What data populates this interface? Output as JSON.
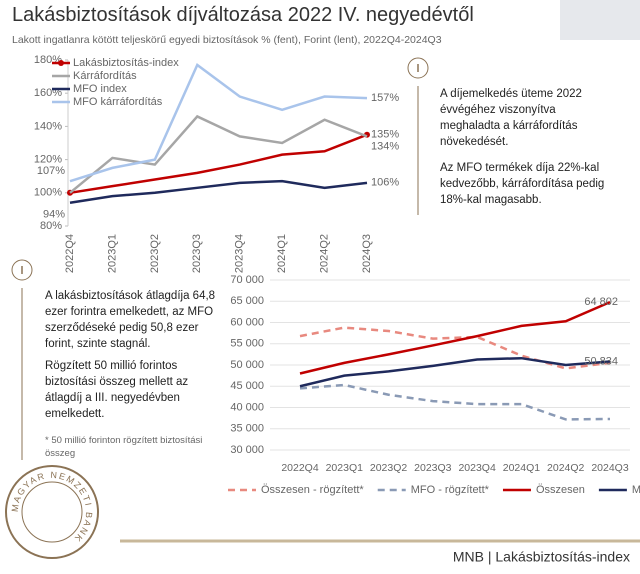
{
  "header": {
    "title": "Lakásbiztosítások díjváltozása 2022 IV. negyedévtől",
    "subtitle": "Lakott ingatlanra kötött teljeskörű egyedi biztosítások % (fent), Forint (lent), 2022Q4-2024Q3"
  },
  "chart_data": [
    {
      "type": "line",
      "categories": [
        "2022Q4",
        "2023Q1",
        "2023Q2",
        "2023Q3",
        "2023Q4",
        "2024Q1",
        "2024Q2",
        "2024Q3"
      ],
      "ylim": [
        80,
        180
      ],
      "yticks": [
        {
          "value": 80,
          "label": "80%"
        },
        {
          "value": 100,
          "label": "100%"
        },
        {
          "value": 120,
          "label": "120%"
        },
        {
          "value": 140,
          "label": "140%"
        },
        {
          "value": 160,
          "label": "160%"
        },
        {
          "value": 180,
          "label": "180%"
        }
      ],
      "grid": false,
      "legend": "upper left",
      "series": [
        {
          "name": "Lakásbiztosítás-index",
          "color": "#c00000",
          "marker": true,
          "values": [
            100,
            104,
            108,
            112,
            117,
            123,
            125,
            135
          ],
          "value_labels": [
            null,
            null,
            null,
            null,
            null,
            null,
            null,
            "135%"
          ]
        },
        {
          "name": "Kárráfordítás",
          "color": "#a6a6a6",
          "values": [
            100,
            121,
            117,
            146,
            134,
            130,
            144,
            134
          ],
          "value_labels": [
            null,
            null,
            null,
            null,
            null,
            null,
            null,
            "134%"
          ]
        },
        {
          "name": "MFO index",
          "color": "#1f2a5c",
          "values": [
            94,
            98,
            100,
            103,
            106,
            107,
            103,
            106
          ],
          "value_labels": [
            "94%",
            null,
            null,
            null,
            null,
            null,
            null,
            "106%"
          ]
        },
        {
          "name": "MFO kárráfordítás",
          "color": "#a9c4eb",
          "values": [
            107,
            115,
            120,
            177,
            158,
            150,
            158,
            157
          ],
          "value_labels": [
            "107%",
            null,
            null,
            null,
            null,
            null,
            null,
            "157%"
          ]
        }
      ]
    },
    {
      "type": "line",
      "categories": [
        "2022Q4",
        "2023Q1",
        "2023Q2",
        "2023Q3",
        "2023Q4",
        "2024Q1",
        "2024Q2",
        "2024Q3"
      ],
      "ylim": [
        30000,
        70000
      ],
      "yticks": [
        {
          "value": 30000,
          "label": "30 000"
        },
        {
          "value": 35000,
          "label": "35 000"
        },
        {
          "value": 40000,
          "label": "40 000"
        },
        {
          "value": 45000,
          "label": "45 000"
        },
        {
          "value": 50000,
          "label": "50 000"
        },
        {
          "value": 55000,
          "label": "55 000"
        },
        {
          "value": 60000,
          "label": "60 000"
        },
        {
          "value": 65000,
          "label": "65 000"
        },
        {
          "value": 70000,
          "label": "70 000"
        }
      ],
      "grid": true,
      "legend": "bottom",
      "series": [
        {
          "name": "Összesen - rögzített*",
          "color": "#e8897f",
          "linestyle": "dashed",
          "values": [
            56800,
            58800,
            58000,
            56200,
            56600,
            52200,
            49200,
            50500
          ]
        },
        {
          "name": "MFO - rögzített*",
          "color": "#8a9ab5",
          "linestyle": "dashed",
          "values": [
            44500,
            45300,
            43000,
            41500,
            40800,
            40800,
            37200,
            37300
          ]
        },
        {
          "name": "Összesen",
          "color": "#c00000",
          "values": [
            48000,
            50500,
            52500,
            54600,
            56800,
            59200,
            60300,
            64802
          ],
          "value_labels": [
            null,
            null,
            null,
            null,
            null,
            null,
            null,
            "64 802"
          ]
        },
        {
          "name": "MFO",
          "color": "#1f2a5c",
          "values": [
            45000,
            47500,
            48500,
            49800,
            51300,
            51600,
            50000,
            50834
          ],
          "value_labels": [
            null,
            null,
            null,
            null,
            null,
            null,
            null,
            "50 834"
          ]
        }
      ]
    }
  ],
  "notes": {
    "top": [
      "A díjemelkedés üteme 2022 évvégéhez viszonyítva meghaladta a kárráfordítás növekedését.",
      "Az MFO termékek díja 22%-kal kedvezőbb, kárráfordítása pedig 18%-kal magasabb."
    ],
    "bottom": [
      "A lakásbiztosítások átlagdíja 64,8 ezer forintra emelkedett, az MFO szerződéseké pedig 50,8 ezer forint, szinte stagnál.",
      "Rögzített 50 millió forintos biztosítási összeg mellett az átlagdíj a III. negyedévben emelkedett."
    ],
    "footnote": "* 50 millió forinton rögzített biztosítási összeg"
  },
  "seal": "MAGYAR NEMZETI BANK",
  "footer": "MNB | Lakásbiztosítás-index"
}
